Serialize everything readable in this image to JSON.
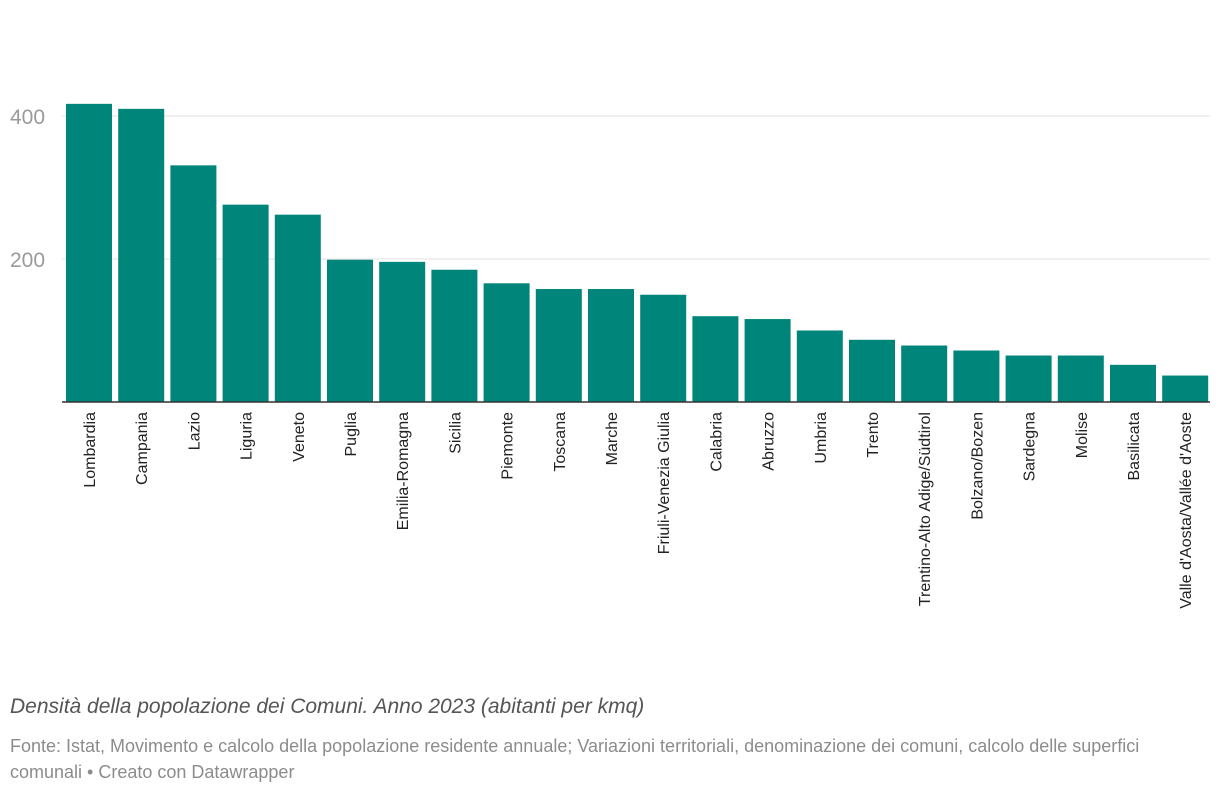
{
  "colors": {
    "bar": "#00857a",
    "grid": "#e0e0e0",
    "axis": "#333333",
    "tick_text": "#9a9a9a",
    "label_text": "#222222"
  },
  "caption": "Densità della popolazione dei Comuni. Anno 2023 (abitanti per kmq)",
  "source": "Fonte: Istat, Movimento e calcolo della popolazione residente annuale; Variazioni territoriali, denominazione dei comuni, calcolo delle superfici comunali • Creato con Datawrapper",
  "chart_data": {
    "type": "bar",
    "categories": [
      "Lombardia",
      "Campania",
      "Lazio",
      "Liguria",
      "Veneto",
      "Puglia",
      "Emilia-Romagna",
      "Sicilia",
      "Piemonte",
      "Toscana",
      "Marche",
      "Friuli-Venezia Giulia",
      "Calabria",
      "Abruzzo",
      "Umbria",
      "Trento",
      "Trentino-Alto Adige/Südtirol",
      "Bolzano/Bozen",
      "Sardegna",
      "Molise",
      "Basilicata",
      "Valle d'Aosta/Vallée d'Aoste"
    ],
    "values": [
      417,
      410,
      331,
      276,
      262,
      199,
      196,
      185,
      166,
      158,
      158,
      150,
      120,
      116,
      100,
      87,
      79,
      72,
      65,
      65,
      52,
      37
    ],
    "yticks": [
      200,
      400
    ],
    "ytick_labels": [
      "200",
      "400"
    ],
    "ylim": [
      0,
      440
    ],
    "grid": true,
    "xlabel": "",
    "ylabel": ""
  }
}
